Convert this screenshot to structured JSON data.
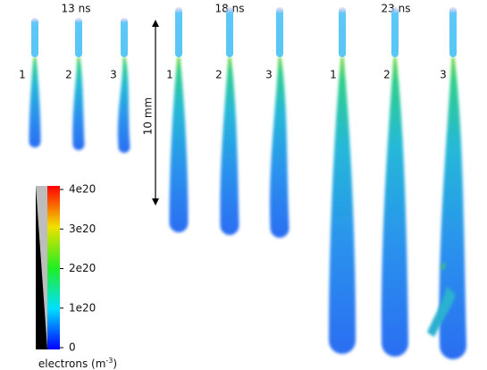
{
  "panels": [
    {
      "time": "13 ns",
      "runs": [
        "1",
        "2",
        "3"
      ]
    },
    {
      "time": "18 ns",
      "runs": [
        "1",
        "2",
        "3"
      ]
    },
    {
      "time": "23 ns",
      "runs": [
        "1",
        "2",
        "3"
      ]
    }
  ],
  "scale_bar": "10 mm",
  "colorbar": {
    "label": "electrons (m",
    "label_exponent": "-3",
    "label_close": ")",
    "ticks": [
      "4e20",
      "3e20",
      "2e20",
      "1e20",
      "0"
    ]
  }
}
